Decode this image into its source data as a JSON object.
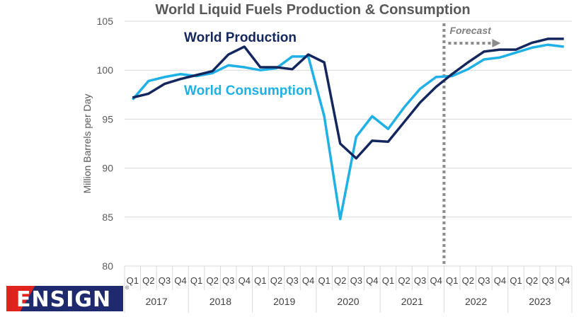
{
  "chart_data": {
    "type": "line",
    "title": "World Liquid Fuels Production & Consumption",
    "ylabel": "Million Barrels per Day",
    "xlabel": "",
    "ylim": [
      80,
      105
    ],
    "yticks": [
      80,
      85,
      90,
      95,
      100,
      105
    ],
    "quarters": [
      "Q1",
      "Q2",
      "Q3",
      "Q4",
      "Q1",
      "Q2",
      "Q3",
      "Q4",
      "Q1",
      "Q2",
      "Q3",
      "Q4",
      "Q1",
      "Q2",
      "Q3",
      "Q4",
      "Q1",
      "Q2",
      "Q3",
      "Q4",
      "Q1",
      "Q2",
      "Q3",
      "Q4",
      "Q1",
      "Q2",
      "Q3",
      "Q4"
    ],
    "years": [
      "2017",
      "2018",
      "2019",
      "2020",
      "2021",
      "2022",
      "2023"
    ],
    "grid": true,
    "series": [
      {
        "name": "World Production",
        "color": "#14265e",
        "values": [
          97.2,
          97.6,
          98.6,
          99.1,
          99.5,
          99.9,
          101.6,
          102.4,
          100.3,
          100.3,
          100.1,
          101.6,
          100.8,
          92.5,
          91.0,
          92.8,
          92.7,
          94.7,
          96.7,
          98.3,
          99.6,
          100.8,
          101.9,
          102.1,
          102.1,
          102.8,
          103.2,
          103.2
        ]
      },
      {
        "name": "World Consumption",
        "color": "#1fb0e6",
        "values": [
          97.0,
          98.9,
          99.3,
          99.6,
          99.4,
          99.7,
          100.5,
          100.3,
          100.0,
          100.2,
          101.4,
          101.4,
          95.3,
          84.8,
          93.2,
          95.3,
          94.0,
          96.2,
          98.1,
          99.3,
          99.4,
          100.1,
          101.1,
          101.3,
          101.8,
          102.3,
          102.6,
          102.4
        ]
      }
    ],
    "annotation": "Forecast",
    "forecast_start_index": 20
  },
  "logo": {
    "text": "ENSIGN",
    "reg": "®"
  }
}
